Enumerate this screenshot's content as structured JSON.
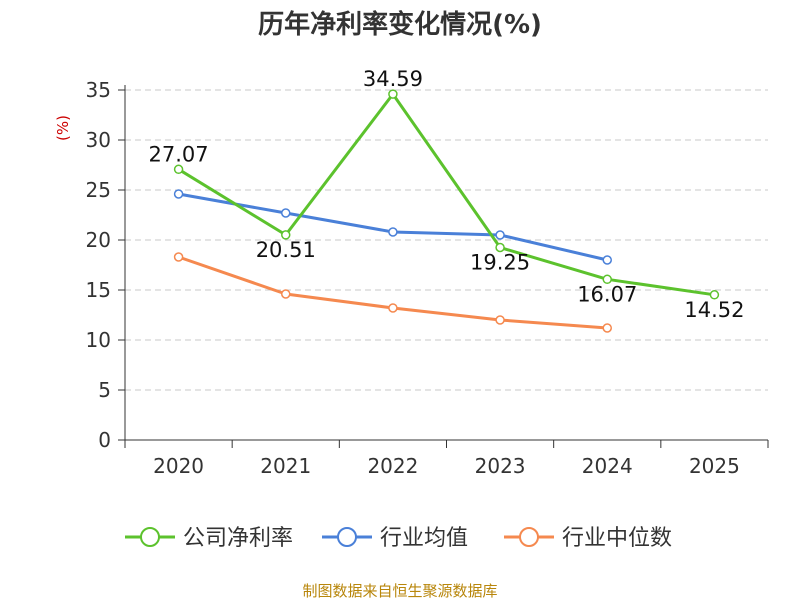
{
  "chart_data": {
    "type": "line",
    "title": "历年净利率变化情况(%)",
    "ylabel": "(%)",
    "categories": [
      "2020",
      "2021",
      "2022",
      "2023",
      "2024",
      "2025"
    ],
    "ylim": [
      0,
      35
    ],
    "yticks": [
      0,
      5,
      10,
      15,
      20,
      25,
      30,
      35
    ],
    "grid": true,
    "legend_position": "bottom",
    "series": [
      {
        "name": "公司净利率",
        "color": "#5cc22d",
        "values": [
          27.07,
          20.51,
          34.59,
          19.25,
          16.07,
          14.52
        ],
        "labels": [
          "27.07",
          "20.51",
          "34.59",
          "19.25",
          "16.07",
          "14.52"
        ]
      },
      {
        "name": "行业均值",
        "color": "#4a80d8",
        "values": [
          24.6,
          22.7,
          20.8,
          20.5,
          18.0,
          null
        ]
      },
      {
        "name": "行业中位数",
        "color": "#f5894f",
        "values": [
          18.3,
          14.6,
          13.2,
          12.0,
          11.2,
          null
        ]
      }
    ],
    "source": "制图数据来自恒生聚源数据库"
  }
}
